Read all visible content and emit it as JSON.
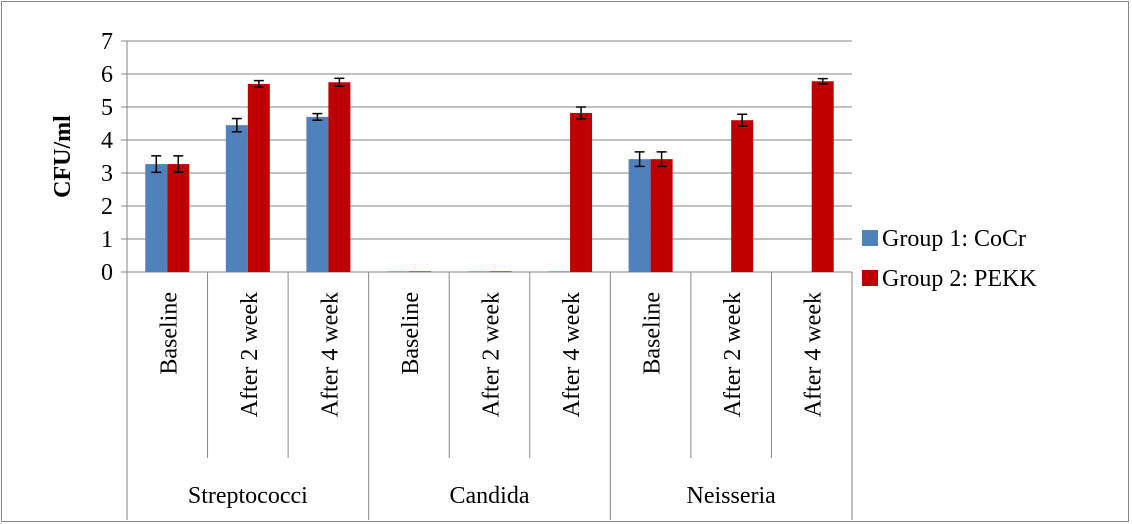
{
  "chart_data": {
    "type": "bar",
    "title": "",
    "xlabel": "",
    "ylabel": "CFU/ml",
    "ylim": [
      0,
      7
    ],
    "yticks": [
      "0",
      "1",
      "2",
      "3",
      "4",
      "5",
      "6",
      "7"
    ],
    "grid": true,
    "legend_position": "right",
    "groups": [
      "Streptococci",
      "Candida",
      "Neisseria"
    ],
    "categories": [
      "Baseline",
      "After 2 week",
      "After 4 week",
      "Baseline",
      "After 2 week",
      "After 4 week",
      "Baseline",
      "After 2 week",
      "After 4 week"
    ],
    "series": [
      {
        "name": "Group 1: CoCr",
        "color": "#4F81BD",
        "values": [
          3.27,
          4.45,
          4.7,
          0.02,
          0.02,
          0.02,
          3.42,
          0.0,
          0.0
        ],
        "errors": [
          0.25,
          0.2,
          0.1,
          0.0,
          0.0,
          0.0,
          0.22,
          0.0,
          0.0
        ]
      },
      {
        "name": "Group 2: PEKK",
        "color": "#C00000",
        "values": [
          3.27,
          5.7,
          5.75,
          0.02,
          0.02,
          4.82,
          3.42,
          4.6,
          5.78
        ],
        "errors": [
          0.25,
          0.1,
          0.12,
          0.0,
          0.0,
          0.18,
          0.22,
          0.18,
          0.08
        ]
      }
    ]
  }
}
